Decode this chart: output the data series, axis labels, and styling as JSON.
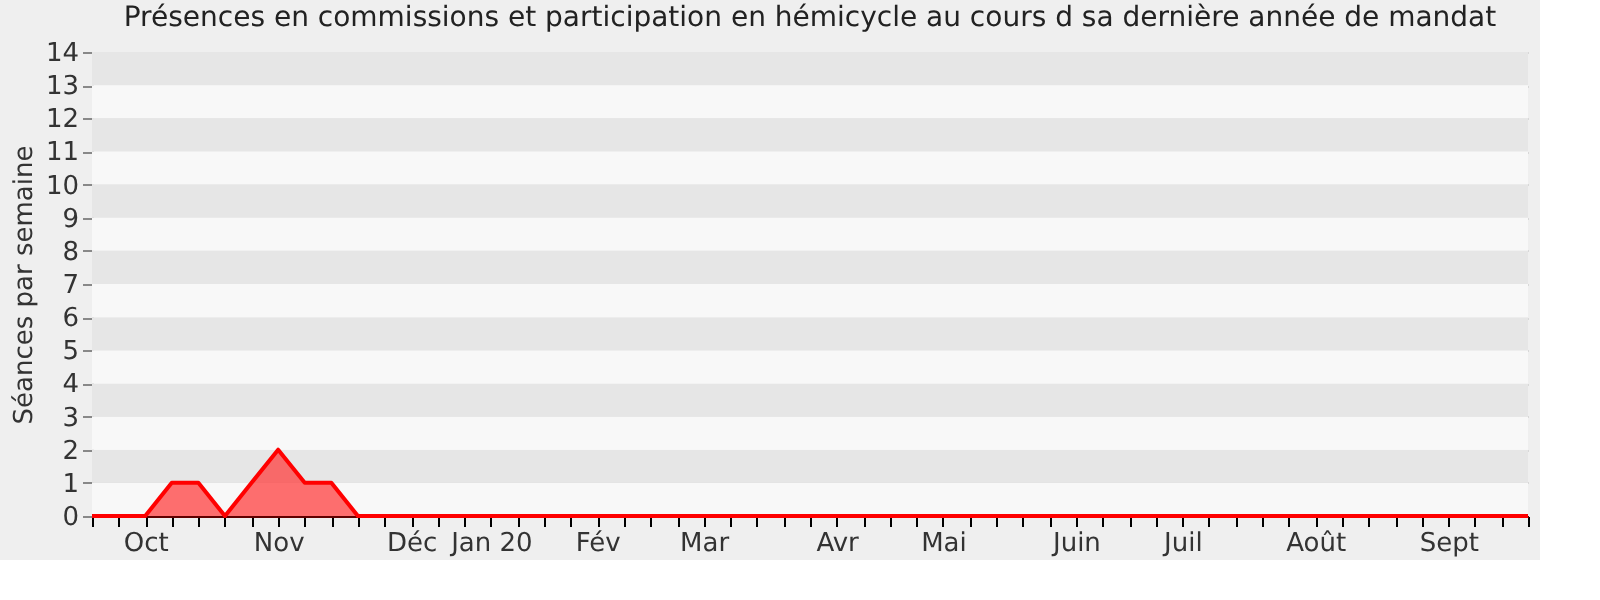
{
  "chart_data": {
    "type": "area",
    "title": "Présences en commissions et participation en hémicycle au cours d sa dernière année de mandat",
    "ylabel": "Séances par semaine",
    "categories": [
      null,
      null,
      "Oct",
      null,
      null,
      null,
      null,
      "Nov",
      null,
      null,
      null,
      null,
      "Déc",
      null,
      null,
      "Jan 20",
      null,
      null,
      null,
      "Fév",
      null,
      null,
      null,
      "Mar",
      null,
      null,
      null,
      null,
      "Avr",
      null,
      null,
      null,
      "Mai",
      null,
      null,
      null,
      null,
      "Juin",
      null,
      null,
      null,
      "Juil",
      null,
      null,
      null,
      null,
      "Août",
      null,
      null,
      null,
      null,
      "Sept",
      null,
      null,
      null
    ],
    "series": [
      {
        "color": "#ff3333",
        "values": [
          0,
          0,
          0,
          1,
          1,
          0,
          1,
          2,
          1,
          1,
          0,
          0,
          0,
          0,
          0,
          0,
          0,
          0,
          0,
          0,
          0,
          0,
          0,
          0,
          0,
          0,
          0,
          0,
          0,
          0,
          0,
          0,
          0,
          0,
          0,
          0,
          0,
          0,
          0,
          0,
          0,
          0,
          0,
          0,
          0,
          0,
          0,
          0,
          0,
          0,
          0,
          0,
          0,
          0,
          0
        ]
      }
    ],
    "ylim": [
      0,
      14
    ],
    "yticks": [
      0,
      1,
      2,
      3,
      4,
      5,
      6,
      7,
      8,
      9,
      10,
      11,
      12,
      13,
      14
    ],
    "grid": "y"
  }
}
